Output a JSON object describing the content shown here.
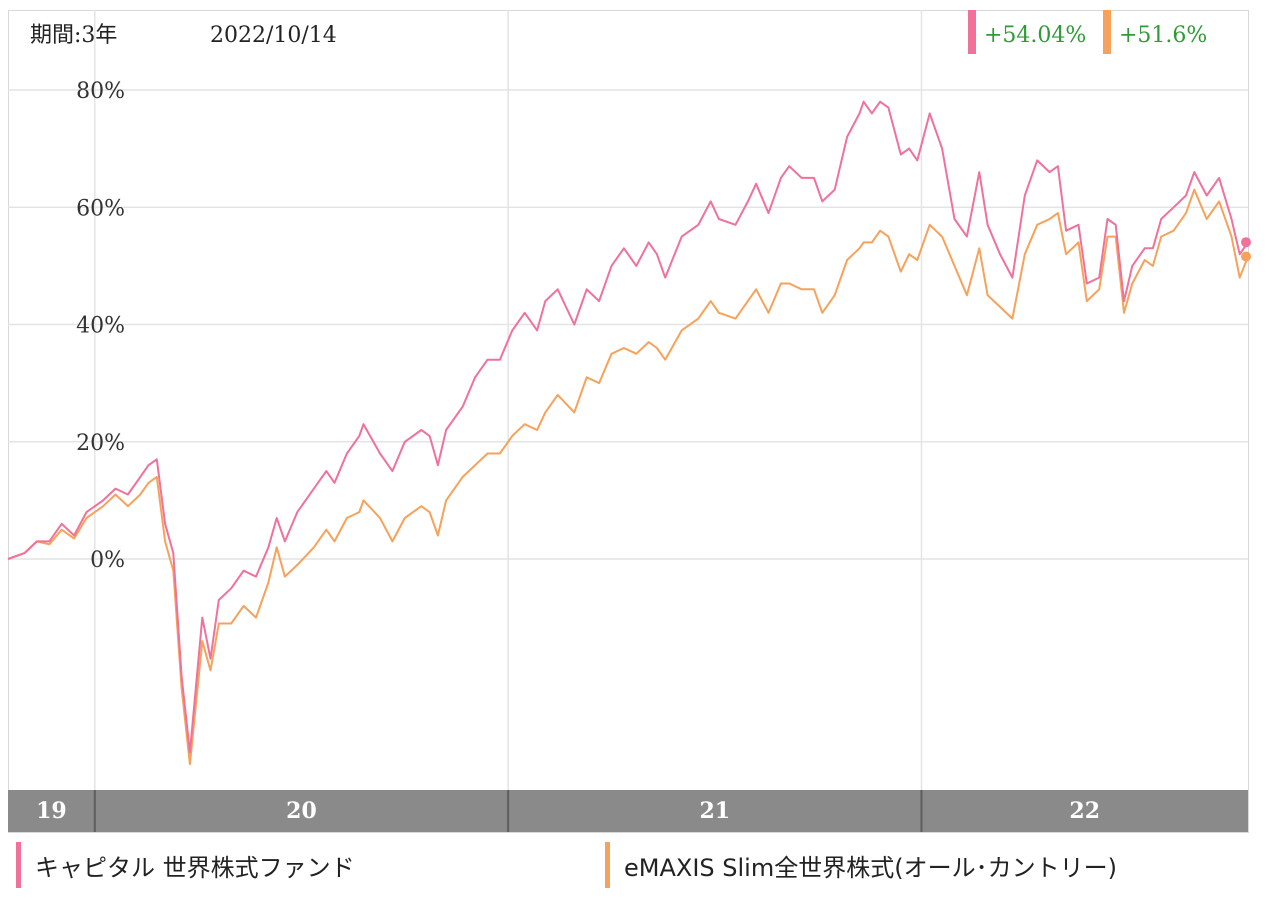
{
  "header": {
    "period": "期間:3年",
    "date": "2022/10/14",
    "badges": [
      {
        "text": "+54.04%",
        "color": "#f0719a"
      },
      {
        "text": "+51.6%",
        "color": "#f7a25a"
      }
    ]
  },
  "colors": {
    "series1": "#f0719a",
    "series2": "#f7a25a",
    "badge_text": "#2e9b36",
    "axis_band": "#8a8a8a",
    "grid": "#e4e4e4"
  },
  "chart_data": {
    "type": "line",
    "xlabel": "",
    "ylabel": "",
    "ylim": [
      -40,
      80
    ],
    "yticks": [
      {
        "value": 80,
        "label": "80%"
      },
      {
        "value": 60,
        "label": "60%"
      },
      {
        "value": 40,
        "label": "40%"
      },
      {
        "value": 20,
        "label": "20%"
      },
      {
        "value": 0,
        "label": "0%"
      }
    ],
    "xlim": [
      2019.79,
      2022.79
    ],
    "year_labels": [
      {
        "label": "19",
        "from": 2019.79,
        "to": 2020.0
      },
      {
        "label": "20",
        "from": 2020.0,
        "to": 2021.0
      },
      {
        "label": "21",
        "from": 2021.0,
        "to": 2022.0
      },
      {
        "label": "22",
        "from": 2022.0,
        "to": 2022.79
      }
    ],
    "grid": true,
    "legend_position": "bottom",
    "series": [
      {
        "name": "キャピタル 世界株式ファンド",
        "end_label": "+54.04%",
        "points": [
          [
            2019.79,
            0
          ],
          [
            2019.83,
            1
          ],
          [
            2019.86,
            3
          ],
          [
            2019.89,
            3
          ],
          [
            2019.92,
            6
          ],
          [
            2019.95,
            4
          ],
          [
            2019.98,
            8
          ],
          [
            2020.02,
            10
          ],
          [
            2020.05,
            12
          ],
          [
            2020.08,
            11
          ],
          [
            2020.11,
            14
          ],
          [
            2020.13,
            16
          ],
          [
            2020.15,
            17
          ],
          [
            2020.17,
            6
          ],
          [
            2020.19,
            1
          ],
          [
            2020.21,
            -20
          ],
          [
            2020.23,
            -33
          ],
          [
            2020.26,
            -10
          ],
          [
            2020.28,
            -17
          ],
          [
            2020.3,
            -7
          ],
          [
            2020.33,
            -5
          ],
          [
            2020.36,
            -2
          ],
          [
            2020.39,
            -3
          ],
          [
            2020.42,
            2
          ],
          [
            2020.44,
            7
          ],
          [
            2020.46,
            3
          ],
          [
            2020.49,
            8
          ],
          [
            2020.53,
            12
          ],
          [
            2020.56,
            15
          ],
          [
            2020.58,
            13
          ],
          [
            2020.61,
            18
          ],
          [
            2020.64,
            21
          ],
          [
            2020.65,
            23
          ],
          [
            2020.69,
            18
          ],
          [
            2020.72,
            15
          ],
          [
            2020.75,
            20
          ],
          [
            2020.79,
            22
          ],
          [
            2020.81,
            21
          ],
          [
            2020.83,
            16
          ],
          [
            2020.85,
            22
          ],
          [
            2020.89,
            26
          ],
          [
            2020.92,
            31
          ],
          [
            2020.95,
            34
          ],
          [
            2020.98,
            34
          ],
          [
            2021.01,
            39
          ],
          [
            2021.04,
            42
          ],
          [
            2021.07,
            39
          ],
          [
            2021.09,
            44
          ],
          [
            2021.12,
            46
          ],
          [
            2021.16,
            40
          ],
          [
            2021.19,
            46
          ],
          [
            2021.22,
            44
          ],
          [
            2021.25,
            50
          ],
          [
            2021.28,
            53
          ],
          [
            2021.31,
            50
          ],
          [
            2021.34,
            54
          ],
          [
            2021.36,
            52
          ],
          [
            2021.38,
            48
          ],
          [
            2021.42,
            55
          ],
          [
            2021.46,
            57
          ],
          [
            2021.49,
            61
          ],
          [
            2021.51,
            58
          ],
          [
            2021.55,
            57
          ],
          [
            2021.58,
            61
          ],
          [
            2021.6,
            64
          ],
          [
            2021.63,
            59
          ],
          [
            2021.66,
            65
          ],
          [
            2021.68,
            67
          ],
          [
            2021.71,
            65
          ],
          [
            2021.74,
            65
          ],
          [
            2021.76,
            61
          ],
          [
            2021.79,
            63
          ],
          [
            2021.82,
            72
          ],
          [
            2021.85,
            76
          ],
          [
            2021.86,
            78
          ],
          [
            2021.88,
            76
          ],
          [
            2021.9,
            78
          ],
          [
            2021.92,
            77
          ],
          [
            2021.95,
            69
          ],
          [
            2021.97,
            70
          ],
          [
            2021.99,
            68
          ],
          [
            2022.02,
            76
          ],
          [
            2022.05,
            70
          ],
          [
            2022.08,
            58
          ],
          [
            2022.11,
            55
          ],
          [
            2022.14,
            66
          ],
          [
            2022.16,
            57
          ],
          [
            2022.19,
            52
          ],
          [
            2022.22,
            48
          ],
          [
            2022.25,
            62
          ],
          [
            2022.28,
            68
          ],
          [
            2022.31,
            66
          ],
          [
            2022.33,
            67
          ],
          [
            2022.35,
            56
          ],
          [
            2022.38,
            57
          ],
          [
            2022.4,
            47
          ],
          [
            2022.43,
            48
          ],
          [
            2022.45,
            58
          ],
          [
            2022.47,
            57
          ],
          [
            2022.49,
            44
          ],
          [
            2022.51,
            50
          ],
          [
            2022.54,
            53
          ],
          [
            2022.56,
            53
          ],
          [
            2022.58,
            58
          ],
          [
            2022.61,
            60
          ],
          [
            2022.64,
            62
          ],
          [
            2022.66,
            66
          ],
          [
            2022.69,
            62
          ],
          [
            2022.72,
            65
          ],
          [
            2022.75,
            58
          ],
          [
            2022.77,
            52
          ],
          [
            2022.79,
            54.04
          ]
        ]
      },
      {
        "name": "eMAXIS Slim全世界株式(オール･カントリー)",
        "end_label": "+51.6%",
        "points": [
          [
            2019.79,
            0
          ],
          [
            2019.83,
            1
          ],
          [
            2019.86,
            3
          ],
          [
            2019.89,
            2.5
          ],
          [
            2019.92,
            5
          ],
          [
            2019.95,
            3.5
          ],
          [
            2019.98,
            7
          ],
          [
            2020.02,
            9
          ],
          [
            2020.05,
            11
          ],
          [
            2020.08,
            9
          ],
          [
            2020.11,
            11
          ],
          [
            2020.13,
            13
          ],
          [
            2020.15,
            14
          ],
          [
            2020.17,
            3
          ],
          [
            2020.19,
            -2
          ],
          [
            2020.21,
            -22
          ],
          [
            2020.23,
            -35
          ],
          [
            2020.26,
            -14
          ],
          [
            2020.28,
            -19
          ],
          [
            2020.3,
            -11
          ],
          [
            2020.33,
            -11
          ],
          [
            2020.36,
            -8
          ],
          [
            2020.39,
            -10
          ],
          [
            2020.42,
            -4
          ],
          [
            2020.44,
            2
          ],
          [
            2020.46,
            -3
          ],
          [
            2020.49,
            -1
          ],
          [
            2020.53,
            2
          ],
          [
            2020.56,
            5
          ],
          [
            2020.58,
            3
          ],
          [
            2020.61,
            7
          ],
          [
            2020.64,
            8
          ],
          [
            2020.65,
            10
          ],
          [
            2020.69,
            7
          ],
          [
            2020.72,
            3
          ],
          [
            2020.75,
            7
          ],
          [
            2020.79,
            9
          ],
          [
            2020.81,
            8
          ],
          [
            2020.83,
            4
          ],
          [
            2020.85,
            10
          ],
          [
            2020.89,
            14
          ],
          [
            2020.92,
            16
          ],
          [
            2020.95,
            18
          ],
          [
            2020.98,
            18
          ],
          [
            2021.01,
            21
          ],
          [
            2021.04,
            23
          ],
          [
            2021.07,
            22
          ],
          [
            2021.09,
            25
          ],
          [
            2021.12,
            28
          ],
          [
            2021.16,
            25
          ],
          [
            2021.19,
            31
          ],
          [
            2021.22,
            30
          ],
          [
            2021.25,
            35
          ],
          [
            2021.28,
            36
          ],
          [
            2021.31,
            35
          ],
          [
            2021.34,
            37
          ],
          [
            2021.36,
            36
          ],
          [
            2021.38,
            34
          ],
          [
            2021.42,
            39
          ],
          [
            2021.46,
            41
          ],
          [
            2021.49,
            44
          ],
          [
            2021.51,
            42
          ],
          [
            2021.55,
            41
          ],
          [
            2021.58,
            44
          ],
          [
            2021.6,
            46
          ],
          [
            2021.63,
            42
          ],
          [
            2021.66,
            47
          ],
          [
            2021.68,
            47
          ],
          [
            2021.71,
            46
          ],
          [
            2021.74,
            46
          ],
          [
            2021.76,
            42
          ],
          [
            2021.79,
            45
          ],
          [
            2021.82,
            51
          ],
          [
            2021.85,
            53
          ],
          [
            2021.86,
            54
          ],
          [
            2021.88,
            54
          ],
          [
            2021.9,
            56
          ],
          [
            2021.92,
            55
          ],
          [
            2021.95,
            49
          ],
          [
            2021.97,
            52
          ],
          [
            2021.99,
            51
          ],
          [
            2022.02,
            57
          ],
          [
            2022.05,
            55
          ],
          [
            2022.08,
            50
          ],
          [
            2022.11,
            45
          ],
          [
            2022.14,
            53
          ],
          [
            2022.16,
            45
          ],
          [
            2022.19,
            43
          ],
          [
            2022.22,
            41
          ],
          [
            2022.25,
            52
          ],
          [
            2022.28,
            57
          ],
          [
            2022.31,
            58
          ],
          [
            2022.33,
            59
          ],
          [
            2022.35,
            52
          ],
          [
            2022.38,
            54
          ],
          [
            2022.4,
            44
          ],
          [
            2022.43,
            46
          ],
          [
            2022.45,
            55
          ],
          [
            2022.47,
            55
          ],
          [
            2022.49,
            42
          ],
          [
            2022.51,
            47
          ],
          [
            2022.54,
            51
          ],
          [
            2022.56,
            50
          ],
          [
            2022.58,
            55
          ],
          [
            2022.61,
            56
          ],
          [
            2022.64,
            59
          ],
          [
            2022.66,
            63
          ],
          [
            2022.69,
            58
          ],
          [
            2022.72,
            61
          ],
          [
            2022.75,
            55
          ],
          [
            2022.77,
            48
          ],
          [
            2022.79,
            51.6
          ]
        ]
      }
    ]
  }
}
